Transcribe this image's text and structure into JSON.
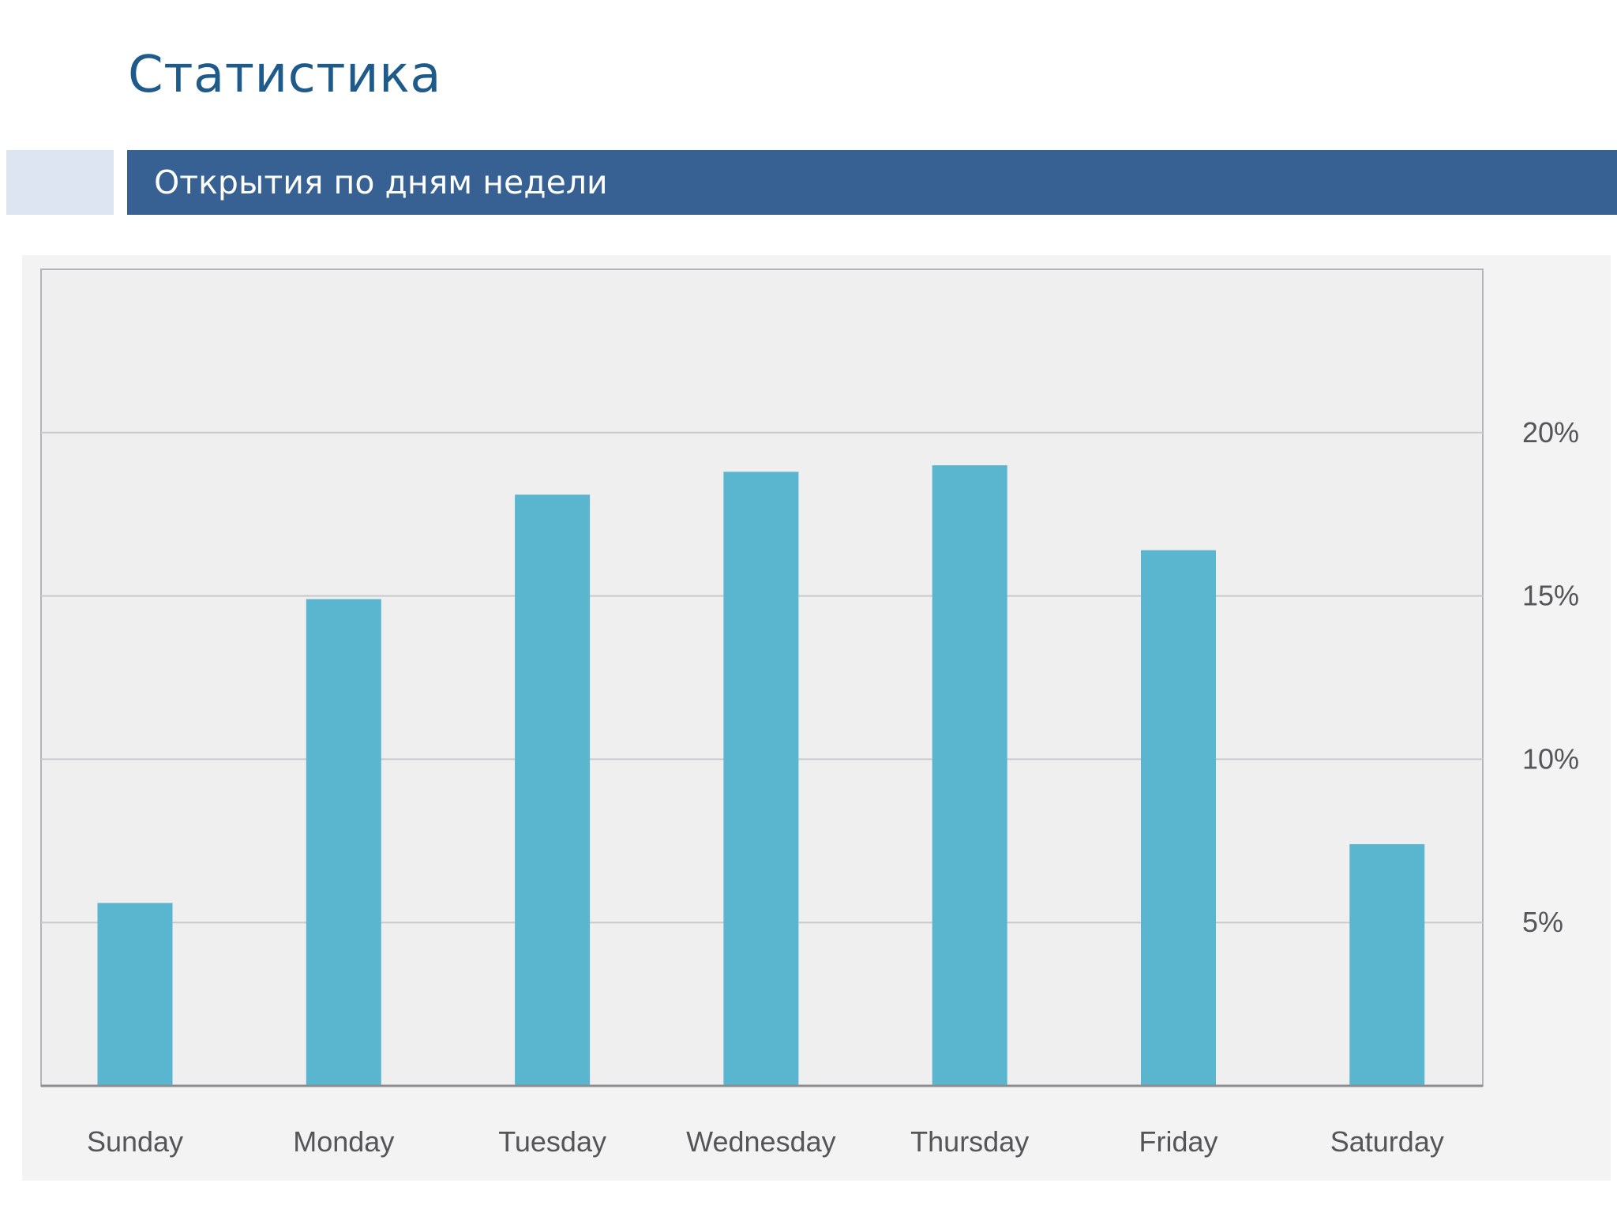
{
  "slide": {
    "title": "Статистика",
    "subtitle": "Открытия по дням недели"
  },
  "colors": {
    "title": "#1f5b8a",
    "header_bar": "#376193",
    "header_accent": "#dce5f1",
    "bar": "#5ab6cf",
    "panel": "#f3f3f4",
    "plot": "#efeff0",
    "grid": "#c9c9cc",
    "axis": "#8e8e92",
    "tick_text": "#555558"
  },
  "chart_data": {
    "type": "bar",
    "title": "",
    "xlabel": "",
    "ylabel": "",
    "categories": [
      "Sunday",
      "Monday",
      "Tuesday",
      "Wednesday",
      "Thursday",
      "Friday",
      "Saturday"
    ],
    "values": [
      5.6,
      14.9,
      18.1,
      18.8,
      19.0,
      16.4,
      7.4
    ],
    "ylim": [
      0,
      25
    ],
    "yticks": [
      5,
      10,
      15,
      20
    ],
    "ytick_labels": [
      "5%",
      "10%",
      "15%",
      "20%"
    ],
    "y_axis_side": "right",
    "grid": true
  }
}
